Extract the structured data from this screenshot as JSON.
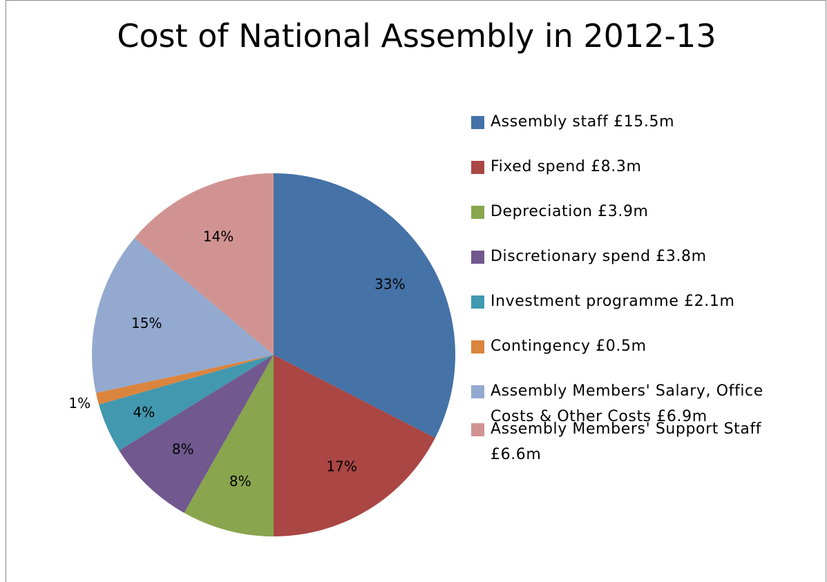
{
  "chart_data": {
    "type": "pie",
    "title": "Cost of National Assembly in 2012-13",
    "legend_position": "right",
    "slices": [
      {
        "label": "Assembly staff £15.5m",
        "value": 15.5,
        "percent_label": "33%",
        "color": "#4572A7"
      },
      {
        "label": "Fixed spend £8.3m",
        "value": 8.3,
        "percent_label": "17%",
        "color": "#AA4643"
      },
      {
        "label": "Depreciation £3.9m",
        "value": 3.9,
        "percent_label": "8%",
        "color": "#89A54E"
      },
      {
        "label": "Discretionary spend £3.8m",
        "value": 3.8,
        "percent_label": "8%",
        "color": "#71588F"
      },
      {
        "label": "Investment programme £2.1m",
        "value": 2.1,
        "percent_label": "4%",
        "color": "#4198AF"
      },
      {
        "label": "Contingency £0.5m",
        "value": 0.5,
        "percent_label": "1%",
        "color": "#DB843D"
      },
      {
        "label": "Assembly Members' Salary, Office Costs & Other Costs £6.9m",
        "value": 6.9,
        "percent_label": "15%",
        "color": "#93A9CF"
      },
      {
        "label": "Assembly Members' Support Staff £6.6m",
        "value": 6.6,
        "percent_label": "14%",
        "color": "#D19392"
      }
    ]
  }
}
